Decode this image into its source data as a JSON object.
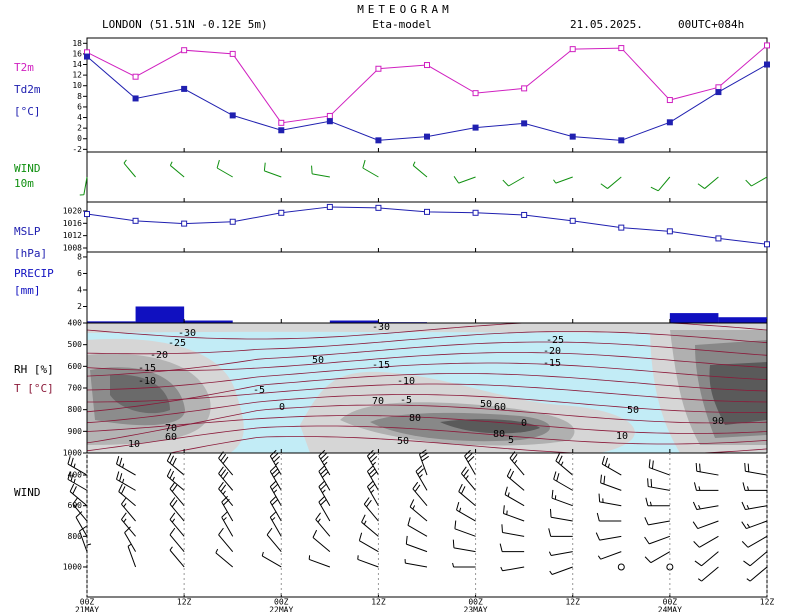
{
  "header": {
    "title": "METEOGRAM",
    "location": "LONDON (51.51N -0.12E  5m)",
    "model": "Eta-model",
    "date": "21.05.2025.",
    "run": "00UTC+084h"
  },
  "chart_data": [
    {
      "type": "line",
      "ylabel": "[°C]",
      "x": [
        0,
        6,
        12,
        18,
        24,
        30,
        36,
        42,
        48,
        54,
        60,
        66,
        72,
        78,
        84
      ],
      "series": [
        {
          "name": "T2m",
          "color": "#d020c0",
          "marker": "open",
          "values": [
            16.3,
            11.7,
            16.7,
            16,
            3,
            4.3,
            13.2,
            13.9,
            8.6,
            9.5,
            16.9,
            17.1,
            7.3,
            9.7,
            17.6
          ]
        },
        {
          "name": "Td2m",
          "color": "#2020b0",
          "marker": "filled",
          "values": [
            15.5,
            7.6,
            9.4,
            4.4,
            1.6,
            3.3,
            -0.3,
            0.4,
            2.1,
            2.9,
            0.4,
            -0.3,
            3.1,
            8.8,
            14
          ]
        }
      ],
      "xlim": [
        0,
        84
      ],
      "ylim": [
        -2.5,
        19
      ],
      "yticks": [
        -2,
        0,
        2,
        4,
        6,
        8,
        10,
        12,
        14,
        16,
        18
      ]
    },
    {
      "type": "barb",
      "title": "WIND",
      "subtitle": "10m",
      "color": "#109010",
      "x": [
        0,
        6,
        12,
        18,
        24,
        30,
        36,
        42,
        48,
        54,
        60,
        66,
        72,
        78,
        84
      ],
      "direction": [
        190,
        320,
        310,
        300,
        290,
        280,
        300,
        310,
        250,
        240,
        250,
        230,
        220,
        230,
        240
      ],
      "speed": [
        5,
        8,
        8,
        10,
        10,
        10,
        10,
        8,
        10,
        10,
        8,
        10,
        10,
        10,
        10
      ],
      "xlim": [
        0,
        84
      ]
    },
    {
      "type": "line",
      "ylabel": "[hPa]",
      "x": [
        0,
        6,
        12,
        18,
        24,
        30,
        36,
        42,
        48,
        54,
        60,
        66,
        72,
        78,
        84
      ],
      "series": [
        {
          "name": "MSLP",
          "color": "#2020b0",
          "marker": "open",
          "values": [
            1019,
            1016.8,
            1015.9,
            1016.5,
            1019.4,
            1021.3,
            1021,
            1019.7,
            1019.4,
            1018.7,
            1016.8,
            1014.6,
            1013.4,
            1011.1,
            1009.2
          ]
        }
      ],
      "xlim": [
        0,
        84
      ],
      "ylim": [
        1006.7,
        1022.9
      ],
      "yticks": [
        1008,
        1012,
        1016,
        1020
      ]
    },
    {
      "type": "histogram",
      "title": "PRECIP",
      "ylabel": "[mm]",
      "color": "#1010c0",
      "bins": [
        0,
        6,
        12,
        18,
        24,
        30,
        36,
        42,
        48,
        54,
        60,
        66,
        72,
        78,
        84
      ],
      "values": [
        0.2,
        2.0,
        0.3,
        0,
        0,
        0.3,
        0.1,
        0,
        0,
        0,
        0,
        0,
        1.2,
        0.7
      ],
      "xlim": [
        0,
        84
      ],
      "ylim": [
        0,
        8.6
      ],
      "yticks": [
        2,
        4,
        6,
        8
      ]
    },
    {
      "type": "contour",
      "ylabel": "RH [%]",
      "y2label": "T [°C]",
      "xlim": [
        0,
        84
      ],
      "ylim": [
        400,
        1000
      ],
      "yticks": [
        400,
        500,
        600,
        700,
        800,
        900,
        1000
      ],
      "contour_labels": [
        "-30",
        "-25",
        "-20",
        "-15",
        "-10",
        "-30",
        "-25",
        "-20",
        "-15",
        "-15",
        "-10",
        "-5",
        "-5",
        "0",
        "0",
        "5",
        "10",
        "10",
        "50",
        "50",
        "50",
        "50",
        "60",
        "70",
        "70",
        "80",
        "80",
        "90",
        "60"
      ]
    },
    {
      "type": "barb",
      "title": "WIND",
      "color": "#000000",
      "x": [
        0,
        6,
        12,
        18,
        24,
        30,
        36,
        42,
        48,
        54,
        60,
        66,
        72,
        78,
        84
      ],
      "levels": [
        400,
        500,
        600,
        700,
        800,
        900,
        1000
      ],
      "direction": [
        [
          300,
          300,
          310,
          320,
          330,
          330,
          330,
          340,
          330,
          320,
          310,
          300,
          290,
          280,
          280
        ],
        [
          300,
          300,
          310,
          320,
          330,
          330,
          330,
          330,
          320,
          310,
          300,
          290,
          280,
          270,
          270
        ],
        [
          310,
          310,
          320,
          320,
          330,
          330,
          330,
          320,
          310,
          300,
          290,
          280,
          270,
          260,
          260
        ],
        [
          320,
          320,
          320,
          330,
          330,
          330,
          320,
          310,
          300,
          290,
          280,
          270,
          260,
          250,
          250
        ],
        [
          330,
          320,
          320,
          330,
          330,
          320,
          310,
          300,
          290,
          280,
          270,
          260,
          250,
          240,
          240
        ],
        [
          340,
          330,
          320,
          320,
          320,
          310,
          300,
          290,
          280,
          270,
          260,
          250,
          240,
          230,
          230
        ],
        [
          0,
          340,
          320,
          310,
          300,
          290,
          290,
          280,
          270,
          260,
          250,
          0,
          0,
          230,
          230
        ]
      ],
      "speed": [
        [
          25,
          25,
          30,
          30,
          35,
          35,
          35,
          30,
          30,
          25,
          25,
          25,
          20,
          20,
          20
        ],
        [
          25,
          25,
          25,
          30,
          30,
          30,
          30,
          25,
          25,
          20,
          20,
          20,
          20,
          15,
          15
        ],
        [
          20,
          20,
          20,
          25,
          25,
          25,
          25,
          20,
          20,
          15,
          15,
          15,
          15,
          15,
          15
        ],
        [
          15,
          15,
          20,
          20,
          20,
          20,
          20,
          15,
          15,
          15,
          10,
          10,
          10,
          10,
          15
        ],
        [
          10,
          15,
          15,
          15,
          15,
          15,
          15,
          10,
          10,
          10,
          10,
          10,
          10,
          10,
          10
        ],
        [
          10,
          10,
          10,
          10,
          10,
          10,
          10,
          10,
          10,
          10,
          5,
          5,
          10,
          10,
          10
        ],
        [
          5,
          5,
          5,
          5,
          5,
          5,
          5,
          5,
          5,
          5,
          5,
          0,
          0,
          5,
          5
        ]
      ],
      "xlim": [
        0,
        84
      ],
      "ylim": [
        256,
        1196
      ],
      "yticks": [
        400,
        600,
        800,
        1000
      ],
      "xticks": [
        {
          "value": 0,
          "label": "00Z"
        },
        {
          "value": 12,
          "label": "12Z"
        },
        {
          "value": 24,
          "label": "00Z"
        },
        {
          "value": 36,
          "label": "12Z"
        },
        {
          "value": 48,
          "label": "00Z"
        },
        {
          "value": 60,
          "label": "12Z"
        },
        {
          "value": 72,
          "label": "00Z"
        },
        {
          "value": 84,
          "label": "12Z"
        }
      ],
      "dates": [
        {
          "value": 0,
          "label": "21MAY"
        },
        {
          "value": 24,
          "label": "22MAY"
        },
        {
          "value": 48,
          "label": "23MAY"
        },
        {
          "value": 72,
          "label": "24MAY"
        }
      ]
    }
  ]
}
